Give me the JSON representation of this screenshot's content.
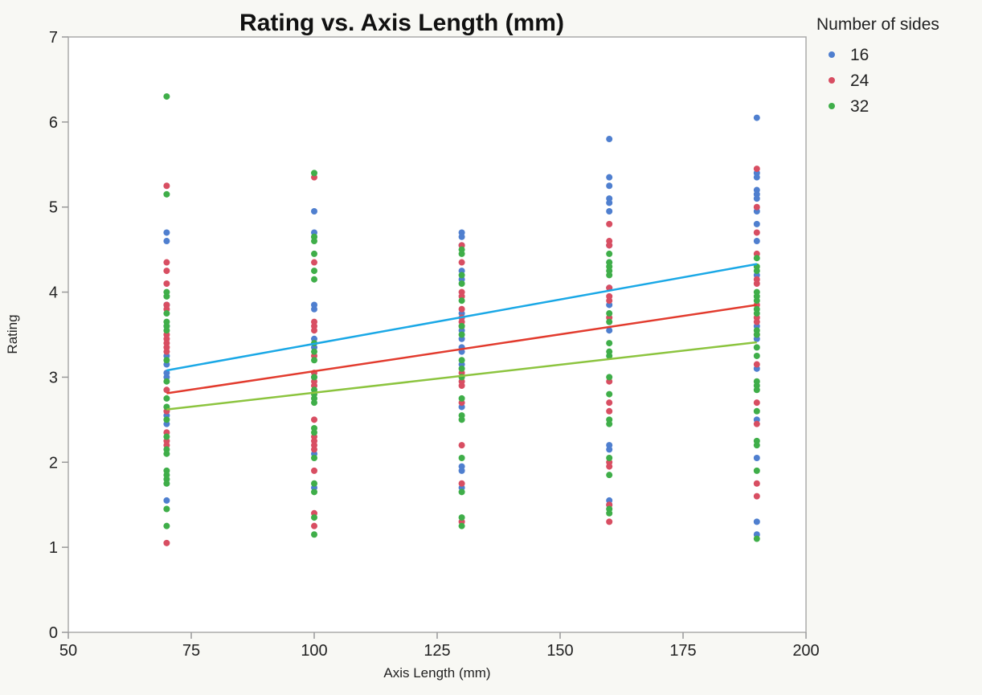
{
  "chart_data": {
    "type": "scatter",
    "title": "Rating vs. Axis Length (mm)",
    "xlabel": "Axis Length (mm)",
    "ylabel": "Rating",
    "xlim": [
      50,
      200
    ],
    "ylim": [
      0,
      7
    ],
    "x_ticks": [
      50,
      75,
      100,
      125,
      150,
      175,
      200
    ],
    "y_ticks": [
      0,
      1,
      2,
      3,
      4,
      5,
      6,
      7
    ],
    "x_tick_labels": [
      "50",
      "75",
      "100",
      "125",
      "150",
      "175",
      "200"
    ],
    "y_tick_labels": [
      "0",
      "1",
      "2",
      "3",
      "4",
      "5",
      "6",
      "7"
    ],
    "grid": false,
    "legend": {
      "title": "Number of sides",
      "position": "top-right"
    },
    "series": [
      {
        "name": "16",
        "color": "#4f7fcf",
        "points": [
          [
            70,
            4.7
          ],
          [
            70,
            4.6
          ],
          [
            70,
            3.85
          ],
          [
            70,
            3.6
          ],
          [
            70,
            3.25
          ],
          [
            70,
            3.15
          ],
          [
            70,
            3.05
          ],
          [
            70,
            3.0
          ],
          [
            70,
            2.55
          ],
          [
            70,
            2.45
          ],
          [
            70,
            1.55
          ],
          [
            100,
            4.95
          ],
          [
            100,
            4.7
          ],
          [
            100,
            4.65
          ],
          [
            100,
            3.85
          ],
          [
            100,
            3.8
          ],
          [
            100,
            3.45
          ],
          [
            100,
            3.35
          ],
          [
            100,
            3.0
          ],
          [
            100,
            2.1
          ],
          [
            100,
            1.7
          ],
          [
            130,
            4.7
          ],
          [
            130,
            4.65
          ],
          [
            130,
            4.55
          ],
          [
            130,
            4.25
          ],
          [
            130,
            4.15
          ],
          [
            130,
            3.75
          ],
          [
            130,
            3.55
          ],
          [
            130,
            3.45
          ],
          [
            130,
            3.35
          ],
          [
            130,
            3.3
          ],
          [
            130,
            3.15
          ],
          [
            130,
            2.65
          ],
          [
            130,
            1.95
          ],
          [
            130,
            1.9
          ],
          [
            130,
            1.7
          ],
          [
            160,
            5.8
          ],
          [
            160,
            5.35
          ],
          [
            160,
            5.25
          ],
          [
            160,
            5.1
          ],
          [
            160,
            5.05
          ],
          [
            160,
            4.95
          ],
          [
            160,
            4.55
          ],
          [
            160,
            4.35
          ],
          [
            160,
            4.05
          ],
          [
            160,
            3.85
          ],
          [
            160,
            3.55
          ],
          [
            160,
            2.2
          ],
          [
            160,
            2.15
          ],
          [
            160,
            1.55
          ],
          [
            160,
            1.5
          ],
          [
            190,
            6.05
          ],
          [
            190,
            5.4
          ],
          [
            190,
            5.35
          ],
          [
            190,
            5.2
          ],
          [
            190,
            5.15
          ],
          [
            190,
            5.1
          ],
          [
            190,
            4.95
          ],
          [
            190,
            4.8
          ],
          [
            190,
            4.6
          ],
          [
            190,
            4.2
          ],
          [
            190,
            3.6
          ],
          [
            190,
            3.45
          ],
          [
            190,
            3.1
          ],
          [
            190,
            2.5
          ],
          [
            190,
            2.05
          ],
          [
            190,
            1.3
          ],
          [
            190,
            1.15
          ]
        ]
      },
      {
        "name": "24",
        "color": "#d84e62",
        "points": [
          [
            70,
            5.25
          ],
          [
            70,
            4.35
          ],
          [
            70,
            4.25
          ],
          [
            70,
            4.1
          ],
          [
            70,
            3.85
          ],
          [
            70,
            3.8
          ],
          [
            70,
            3.5
          ],
          [
            70,
            3.45
          ],
          [
            70,
            3.4
          ],
          [
            70,
            3.35
          ],
          [
            70,
            3.3
          ],
          [
            70,
            2.85
          ],
          [
            70,
            2.6
          ],
          [
            70,
            2.35
          ],
          [
            70,
            2.25
          ],
          [
            70,
            2.2
          ],
          [
            70,
            1.05
          ],
          [
            100,
            5.35
          ],
          [
            100,
            4.35
          ],
          [
            100,
            3.65
          ],
          [
            100,
            3.6
          ],
          [
            100,
            3.55
          ],
          [
            100,
            3.25
          ],
          [
            100,
            3.05
          ],
          [
            100,
            2.95
          ],
          [
            100,
            2.9
          ],
          [
            100,
            2.5
          ],
          [
            100,
            2.3
          ],
          [
            100,
            2.25
          ],
          [
            100,
            2.2
          ],
          [
            100,
            2.15
          ],
          [
            100,
            1.9
          ],
          [
            100,
            1.4
          ],
          [
            100,
            1.25
          ],
          [
            130,
            4.55
          ],
          [
            130,
            4.35
          ],
          [
            130,
            4.0
          ],
          [
            130,
            3.95
          ],
          [
            130,
            3.8
          ],
          [
            130,
            3.7
          ],
          [
            130,
            3.65
          ],
          [
            130,
            3.6
          ],
          [
            130,
            3.05
          ],
          [
            130,
            2.95
          ],
          [
            130,
            2.9
          ],
          [
            130,
            2.7
          ],
          [
            130,
            2.2
          ],
          [
            130,
            1.75
          ],
          [
            130,
            1.3
          ],
          [
            160,
            4.8
          ],
          [
            160,
            4.6
          ],
          [
            160,
            4.55
          ],
          [
            160,
            4.05
          ],
          [
            160,
            3.95
          ],
          [
            160,
            3.9
          ],
          [
            160,
            3.7
          ],
          [
            160,
            2.95
          ],
          [
            160,
            2.7
          ],
          [
            160,
            2.6
          ],
          [
            160,
            2.0
          ],
          [
            160,
            1.95
          ],
          [
            160,
            1.5
          ],
          [
            160,
            1.3
          ],
          [
            190,
            5.45
          ],
          [
            190,
            5.0
          ],
          [
            190,
            4.7
          ],
          [
            190,
            4.45
          ],
          [
            190,
            4.15
          ],
          [
            190,
            4.1
          ],
          [
            190,
            3.85
          ],
          [
            190,
            3.7
          ],
          [
            190,
            3.65
          ],
          [
            190,
            3.5
          ],
          [
            190,
            3.15
          ],
          [
            190,
            2.7
          ],
          [
            190,
            2.45
          ],
          [
            190,
            1.75
          ],
          [
            190,
            1.6
          ]
        ]
      },
      {
        "name": "32",
        "color": "#3fae49",
        "points": [
          [
            70,
            6.3
          ],
          [
            70,
            5.15
          ],
          [
            70,
            4.0
          ],
          [
            70,
            3.95
          ],
          [
            70,
            3.75
          ],
          [
            70,
            3.65
          ],
          [
            70,
            3.6
          ],
          [
            70,
            3.55
          ],
          [
            70,
            3.2
          ],
          [
            70,
            2.95
          ],
          [
            70,
            2.75
          ],
          [
            70,
            2.65
          ],
          [
            70,
            2.5
          ],
          [
            70,
            2.3
          ],
          [
            70,
            2.15
          ],
          [
            70,
            2.1
          ],
          [
            70,
            1.9
          ],
          [
            70,
            1.85
          ],
          [
            70,
            1.8
          ],
          [
            70,
            1.75
          ],
          [
            70,
            1.45
          ],
          [
            70,
            1.25
          ],
          [
            100,
            5.4
          ],
          [
            100,
            4.65
          ],
          [
            100,
            4.6
          ],
          [
            100,
            4.45
          ],
          [
            100,
            4.25
          ],
          [
            100,
            4.15
          ],
          [
            100,
            3.4
          ],
          [
            100,
            3.3
          ],
          [
            100,
            3.2
          ],
          [
            100,
            3.0
          ],
          [
            100,
            2.85
          ],
          [
            100,
            2.8
          ],
          [
            100,
            2.75
          ],
          [
            100,
            2.7
          ],
          [
            100,
            2.4
          ],
          [
            100,
            2.35
          ],
          [
            100,
            2.05
          ],
          [
            100,
            1.75
          ],
          [
            100,
            1.65
          ],
          [
            100,
            1.35
          ],
          [
            100,
            1.15
          ],
          [
            130,
            4.5
          ],
          [
            130,
            4.45
          ],
          [
            130,
            4.2
          ],
          [
            130,
            4.1
          ],
          [
            130,
            3.9
          ],
          [
            130,
            3.6
          ],
          [
            130,
            3.5
          ],
          [
            130,
            3.2
          ],
          [
            130,
            3.1
          ],
          [
            130,
            3.0
          ],
          [
            130,
            2.75
          ],
          [
            130,
            2.55
          ],
          [
            130,
            2.5
          ],
          [
            130,
            2.05
          ],
          [
            130,
            1.65
          ],
          [
            130,
            1.35
          ],
          [
            130,
            1.25
          ],
          [
            160,
            4.45
          ],
          [
            160,
            4.35
          ],
          [
            160,
            4.3
          ],
          [
            160,
            4.25
          ],
          [
            160,
            4.2
          ],
          [
            160,
            3.75
          ],
          [
            160,
            3.65
          ],
          [
            160,
            3.4
          ],
          [
            160,
            3.3
          ],
          [
            160,
            3.25
          ],
          [
            160,
            3.0
          ],
          [
            160,
            2.8
          ],
          [
            160,
            2.5
          ],
          [
            160,
            2.45
          ],
          [
            160,
            2.05
          ],
          [
            160,
            1.85
          ],
          [
            160,
            1.45
          ],
          [
            160,
            1.4
          ],
          [
            190,
            4.4
          ],
          [
            190,
            4.3
          ],
          [
            190,
            4.25
          ],
          [
            190,
            4.0
          ],
          [
            190,
            3.95
          ],
          [
            190,
            3.9
          ],
          [
            190,
            3.8
          ],
          [
            190,
            3.75
          ],
          [
            190,
            3.55
          ],
          [
            190,
            3.5
          ],
          [
            190,
            3.35
          ],
          [
            190,
            3.25
          ],
          [
            190,
            2.95
          ],
          [
            190,
            2.9
          ],
          [
            190,
            2.85
          ],
          [
            190,
            2.6
          ],
          [
            190,
            2.25
          ],
          [
            190,
            2.2
          ],
          [
            190,
            1.9
          ],
          [
            190,
            1.1
          ]
        ]
      }
    ],
    "fit_lines": [
      {
        "color": "#1aa8e6",
        "x": [
          70,
          190
        ],
        "y": [
          3.08,
          4.33
        ]
      },
      {
        "color": "#e23b2e",
        "x": [
          70,
          190
        ],
        "y": [
          2.81,
          3.85
        ]
      },
      {
        "color": "#8cc43f",
        "x": [
          70,
          190
        ],
        "y": [
          2.62,
          3.41
        ]
      }
    ]
  }
}
